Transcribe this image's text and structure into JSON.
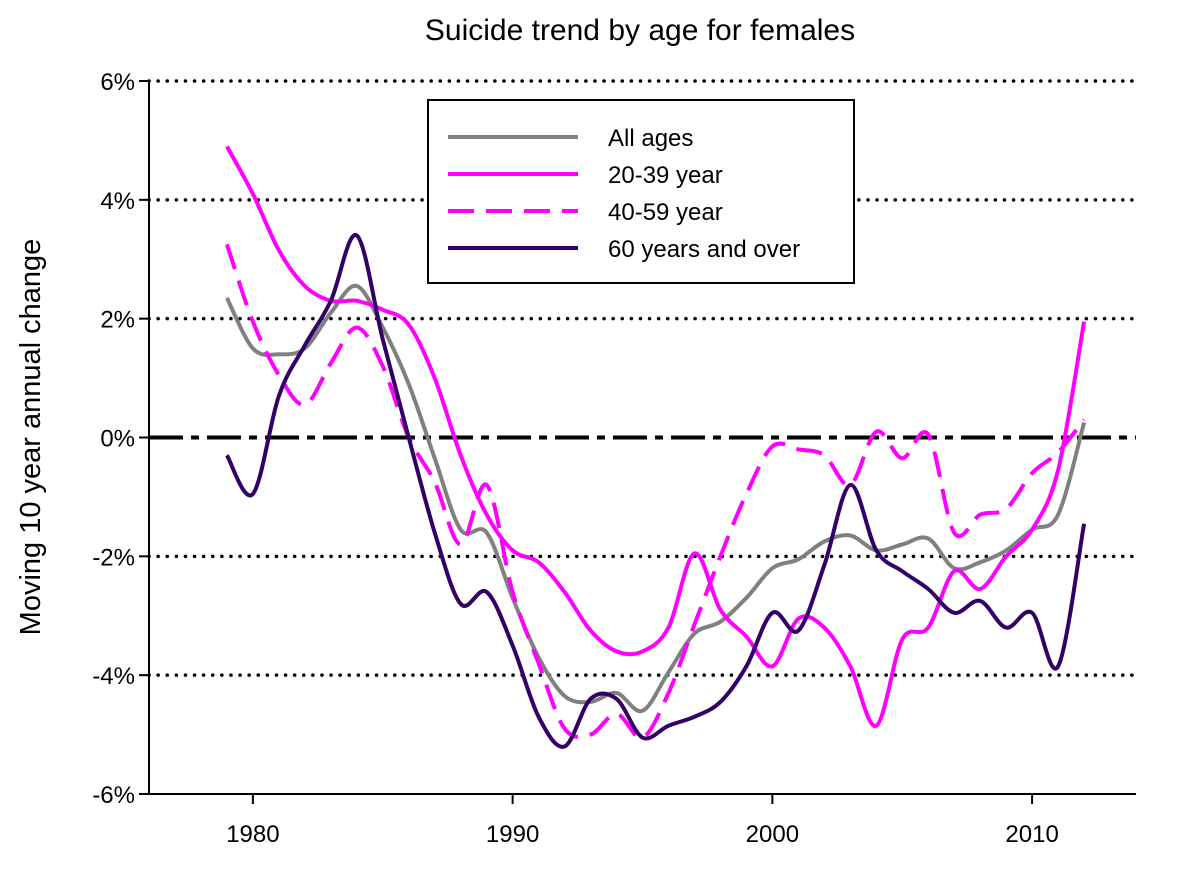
{
  "chart_data": {
    "type": "line",
    "title": "Suicide trend by age for females",
    "xlabel": "",
    "ylabel": "Moving 10 year annual change",
    "xlim": [
      1976,
      2014
    ],
    "ylim": [
      -6,
      6
    ],
    "x_ticks": [
      1980,
      1990,
      2000,
      2010
    ],
    "x_tick_labels": [
      "1980",
      "1990",
      "2000",
      "2010"
    ],
    "y_ticks": [
      -6,
      -4,
      -2,
      0,
      2,
      4,
      6
    ],
    "y_tick_labels": [
      "-6%",
      "-4%",
      "-2%",
      "0%",
      "2%",
      "4%",
      "6%"
    ],
    "grid": "horizontal dotted at -4%, -2%, 2%, 4%, 6%; dashed zero line",
    "legend_position": "top-center",
    "x": [
      1979,
      1980,
      1981,
      1982,
      1983,
      1984,
      1985,
      1986,
      1987,
      1988,
      1989,
      1990,
      1991,
      1992,
      1993,
      1994,
      1995,
      1996,
      1997,
      1998,
      1999,
      2000,
      2001,
      2002,
      2003,
      2004,
      2005,
      2006,
      2007,
      2008,
      2009,
      2010,
      2011,
      2012
    ],
    "series": [
      {
        "name": "All ages",
        "color": "#808080",
        "style": "solid",
        "values": [
          2.35,
          1.5,
          1.4,
          1.5,
          2.1,
          2.55,
          1.85,
          0.9,
          -0.35,
          -1.55,
          -1.6,
          -2.7,
          -3.7,
          -4.35,
          -4.45,
          -4.3,
          -4.6,
          -3.95,
          -3.3,
          -3.1,
          -2.7,
          -2.2,
          -2.05,
          -1.75,
          -1.65,
          -1.9,
          -1.8,
          -1.7,
          -2.2,
          -2.1,
          -1.9,
          -1.55,
          -1.3,
          0.25
        ]
      },
      {
        "name": "20-39 year",
        "color": "#ff00ff",
        "style": "solid",
        "values": [
          4.9,
          4.1,
          3.15,
          2.55,
          2.3,
          2.3,
          2.15,
          1.9,
          1.0,
          -0.3,
          -1.3,
          -1.9,
          -2.1,
          -2.6,
          -3.25,
          -3.6,
          -3.6,
          -3.2,
          -1.95,
          -2.9,
          -3.35,
          -3.85,
          -3.05,
          -3.2,
          -3.85,
          -4.85,
          -3.4,
          -3.2,
          -2.25,
          -2.55,
          -2.0,
          -1.55,
          -0.55,
          1.95
        ]
      },
      {
        "name": "40-59 year",
        "color": "#ff00ff",
        "style": "dashed",
        "values": [
          3.25,
          1.95,
          1.05,
          0.55,
          1.25,
          1.85,
          1.2,
          0.0,
          -0.75,
          -1.8,
          -0.8,
          -2.6,
          -3.8,
          -4.9,
          -5.0,
          -4.65,
          -5.05,
          -4.3,
          -3.15,
          -2.0,
          -0.95,
          -0.15,
          -0.2,
          -0.3,
          -0.8,
          0.1,
          -0.35,
          0.05,
          -1.6,
          -1.3,
          -1.2,
          -0.6,
          -0.25,
          0.3
        ]
      },
      {
        "name": "60 years and over",
        "color": "#330066",
        "style": "solid",
        "values": [
          -0.3,
          -0.95,
          0.7,
          1.55,
          2.3,
          3.4,
          1.65,
          0.0,
          -1.6,
          -2.8,
          -2.6,
          -3.5,
          -4.7,
          -5.2,
          -4.4,
          -4.4,
          -5.05,
          -4.85,
          -4.7,
          -4.45,
          -3.85,
          -2.95,
          -3.25,
          -2.15,
          -0.8,
          -1.9,
          -2.25,
          -2.55,
          -2.95,
          -2.75,
          -3.2,
          -2.95,
          -3.85,
          -1.45
        ]
      }
    ]
  }
}
